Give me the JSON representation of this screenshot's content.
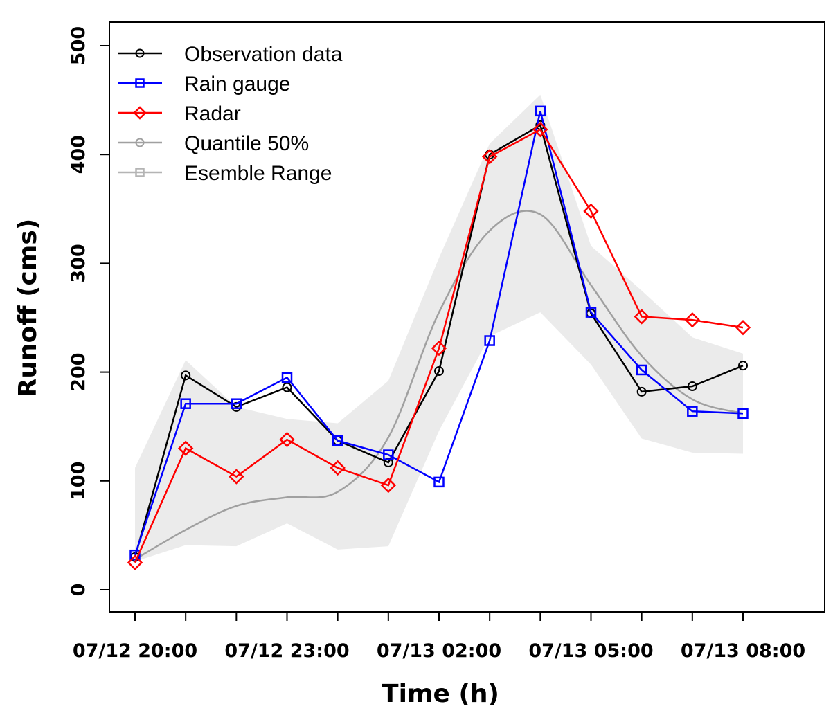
{
  "chart_data": {
    "type": "line",
    "title": "",
    "xlabel": "Time (h)",
    "ylabel": "Runoff (cms)",
    "ylim": [
      0,
      500
    ],
    "yticks": [
      0,
      100,
      200,
      300,
      400,
      500
    ],
    "x": [
      0,
      1,
      2,
      3,
      4,
      5,
      6,
      7,
      8,
      9,
      10,
      11,
      12
    ],
    "xticks": [
      {
        "x": 0,
        "label": "07/12 20:00"
      },
      {
        "x": 3,
        "label": "07/12 23:00"
      },
      {
        "x": 6,
        "label": "07/13 02:00"
      },
      {
        "x": 9,
        "label": "07/13 05:00"
      },
      {
        "x": 12,
        "label": "07/13 08:00"
      }
    ],
    "series": [
      {
        "name": "Observation data",
        "color": "#000000",
        "marker": "circle",
        "values": [
          30,
          197,
          168,
          186,
          137,
          117,
          201,
          400,
          427,
          254,
          182,
          187,
          206
        ]
      },
      {
        "name": "Rain gauge",
        "color": "#0000ff",
        "marker": "square",
        "values": [
          32,
          171,
          171,
          195,
          137,
          124,
          99,
          229,
          440,
          255,
          202,
          164,
          162
        ]
      },
      {
        "name": "Radar",
        "color": "#ff0000",
        "marker": "diamond",
        "values": [
          25,
          130,
          104,
          138,
          112,
          96,
          222,
          398,
          423,
          348,
          251,
          248,
          241
        ]
      },
      {
        "name": "Quantile 50%",
        "color": "#a0a0a0",
        "marker": "circle",
        "values": [
          28,
          55,
          77,
          85,
          90,
          140,
          255,
          330,
          345,
          280,
          215,
          175,
          162
        ]
      }
    ],
    "range": {
      "name": "Esemble Range",
      "color": "#ebebeb",
      "marker": "square",
      "upper": [
        112,
        211,
        168,
        157,
        153,
        192,
        305,
        410,
        455,
        316,
        275,
        232,
        217
      ],
      "lower": [
        26,
        41,
        40,
        61,
        37,
        40,
        146,
        233,
        255,
        207,
        139,
        126,
        125
      ]
    },
    "legend": {
      "position": "top-left",
      "entries": [
        "Observation data",
        "Rain gauge",
        "Radar",
        "Quantile 50%",
        "Esemble Range"
      ]
    }
  }
}
